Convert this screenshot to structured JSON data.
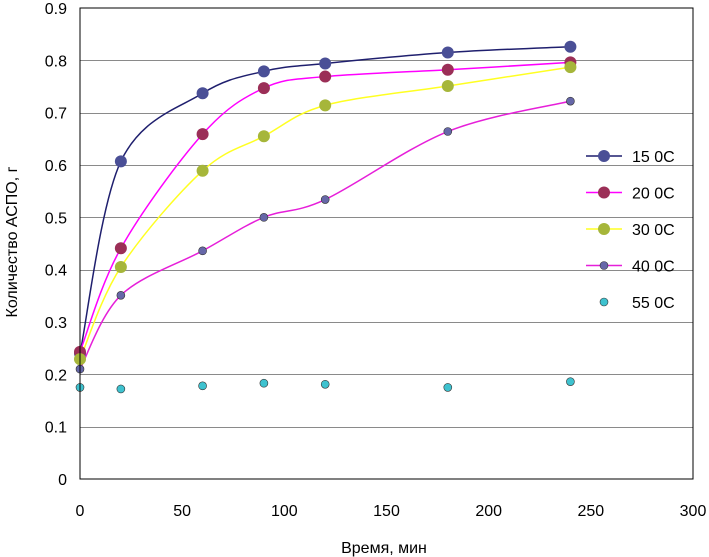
{
  "chart_data": {
    "type": "scatter",
    "title": "",
    "xlabel": "Время, мин",
    "ylabel": "Количество АСПО, г",
    "xlim": [
      0,
      300
    ],
    "ylim": [
      0,
      0.9
    ],
    "xticks": [
      0,
      50,
      100,
      150,
      200,
      250,
      300
    ],
    "yticks": [
      0,
      0.1,
      0.2,
      0.3,
      0.4,
      0.5,
      0.6,
      0.7,
      0.8,
      0.9
    ],
    "xtick_labels": [
      "0",
      "50",
      "100",
      "150",
      "200",
      "250",
      "300"
    ],
    "ytick_labels": [
      "0",
      "0.1",
      "0.2",
      "0.3",
      "0.4",
      "0.5",
      "0.6",
      "0.7",
      "0.8",
      "0.9"
    ],
    "grid": "horizontal",
    "legend_position": "right",
    "series": [
      {
        "name": "15 0C",
        "color": "#4a4f96",
        "line": "#1f1f6e",
        "marker_size": 6,
        "x": [
          0,
          20,
          60,
          90,
          120,
          180,
          240
        ],
        "y": [
          0.24,
          0.607,
          0.737,
          0.779,
          0.794,
          0.815,
          0.826
        ]
      },
      {
        "name": "20 0C",
        "color": "#9b2f57",
        "line": "#ff00ff",
        "marker_size": 6,
        "x": [
          0,
          20,
          60,
          90,
          120,
          180,
          240
        ],
        "y": [
          0.243,
          0.441,
          0.659,
          0.747,
          0.769,
          0.782,
          0.796
        ]
      },
      {
        "name": "30 0C",
        "color": "#a6b63a",
        "line": "#ffff22",
        "marker_size": 6,
        "x": [
          0,
          20,
          60,
          90,
          120,
          180,
          240
        ],
        "y": [
          0.229,
          0.405,
          0.589,
          0.655,
          0.714,
          0.751,
          0.787
        ]
      },
      {
        "name": "40 0C",
        "color": "#6667a8",
        "line": "#e61fd9",
        "marker_size": 4,
        "x": [
          0,
          20,
          60,
          90,
          120,
          180,
          240
        ],
        "y": [
          0.21,
          0.351,
          0.436,
          0.5,
          0.534,
          0.664,
          0.722
        ]
      },
      {
        "name": "55 0C",
        "color": "#3ec2cf",
        "line": null,
        "marker_size": 4,
        "x": [
          0,
          20,
          60,
          90,
          120,
          180,
          240
        ],
        "y": [
          0.175,
          0.172,
          0.178,
          0.183,
          0.181,
          0.175,
          0.186
        ]
      }
    ]
  }
}
